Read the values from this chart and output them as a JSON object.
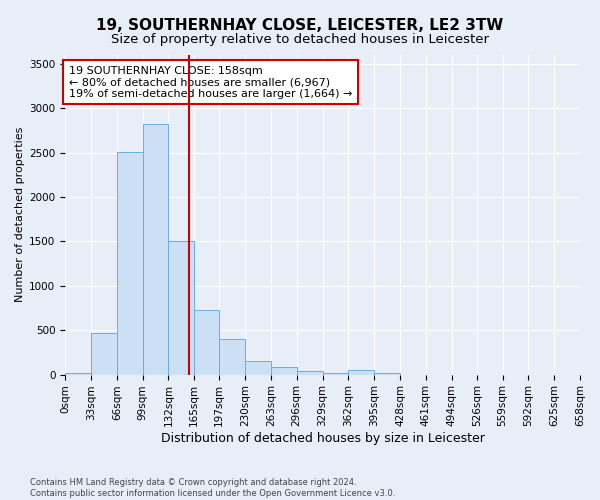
{
  "title": "19, SOUTHERNHAY CLOSE, LEICESTER, LE2 3TW",
  "subtitle": "Size of property relative to detached houses in Leicester",
  "xlabel": "Distribution of detached houses by size in Leicester",
  "ylabel": "Number of detached properties",
  "bin_labels": [
    "0sqm",
    "33sqm",
    "66sqm",
    "99sqm",
    "132sqm",
    "165sqm",
    "197sqm",
    "230sqm",
    "263sqm",
    "296sqm",
    "329sqm",
    "362sqm",
    "395sqm",
    "428sqm",
    "461sqm",
    "494sqm",
    "526sqm",
    "559sqm",
    "592sqm",
    "625sqm",
    "658sqm"
  ],
  "bin_edges": [
    0,
    33,
    66,
    99,
    132,
    165,
    197,
    230,
    263,
    296,
    329,
    362,
    395,
    428,
    461,
    494,
    526,
    559,
    592,
    625,
    658
  ],
  "bar_heights": [
    20,
    470,
    2510,
    2820,
    1510,
    730,
    400,
    150,
    80,
    45,
    20,
    55,
    20,
    0,
    0,
    0,
    0,
    0,
    0,
    0
  ],
  "bar_color": "#cce0f5",
  "bar_edge_color": "#6aaee0",
  "property_size": 158,
  "property_line_color": "#cc0000",
  "annotation_text": "19 SOUTHERNHAY CLOSE: 158sqm\n← 80% of detached houses are smaller (6,967)\n19% of semi-detached houses are larger (1,664) →",
  "annotation_box_color": "#ffffff",
  "annotation_box_edge": "#cc0000",
  "ylim": [
    0,
    3600
  ],
  "yticks": [
    0,
    500,
    1000,
    1500,
    2000,
    2500,
    3000,
    3500
  ],
  "footer_line1": "Contains HM Land Registry data © Crown copyright and database right 2024.",
  "footer_line2": "Contains public sector information licensed under the Open Government Licence v3.0.",
  "bg_color": "#e8eef8",
  "plot_bg_color": "#e8eef8",
  "title_fontsize": 11,
  "subtitle_fontsize": 9.5,
  "xlabel_fontsize": 9,
  "ylabel_fontsize": 8,
  "tick_fontsize": 7.5,
  "footer_fontsize": 6,
  "annotation_fontsize": 8
}
